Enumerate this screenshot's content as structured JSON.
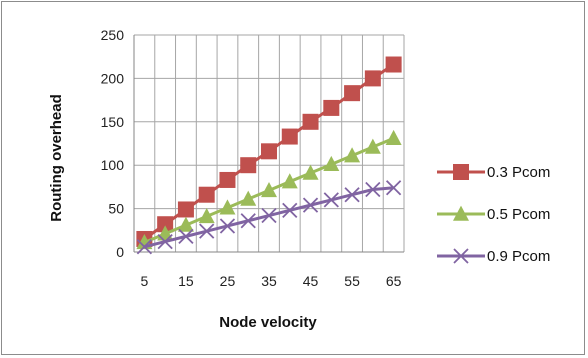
{
  "chart_data": {
    "type": "line",
    "title": "",
    "xlabel": "Node velocity",
    "ylabel": "Routing overhead",
    "x": [
      5,
      10,
      15,
      20,
      25,
      30,
      35,
      40,
      45,
      50,
      55,
      60,
      65
    ],
    "x_tick_labels": [
      "5",
      "15",
      "25",
      "35",
      "45",
      "55",
      "65"
    ],
    "y_tick_labels": [
      "0",
      "50",
      "100",
      "150",
      "200",
      "250"
    ],
    "ylim": [
      0,
      250
    ],
    "grid": "vertical and horizontal",
    "legend_position": "right",
    "series": [
      {
        "name": "0.3 Pcom",
        "color": "#c0504d",
        "marker": "square",
        "values": [
          15,
          32,
          49,
          66,
          83,
          100,
          116,
          133,
          150,
          166,
          183,
          200,
          216
        ]
      },
      {
        "name": "0.5 Pcom",
        "color": "#9bbb59",
        "marker": "triangle",
        "values": [
          11,
          21,
          31,
          41,
          51,
          61,
          71,
          81,
          91,
          101,
          111,
          121,
          131
        ]
      },
      {
        "name": "0.9 Pcom",
        "color": "#8064a2",
        "marker": "x",
        "values": [
          6,
          12,
          18,
          24,
          30,
          36,
          42,
          48,
          54,
          60,
          66,
          72,
          74
        ]
      }
    ]
  }
}
